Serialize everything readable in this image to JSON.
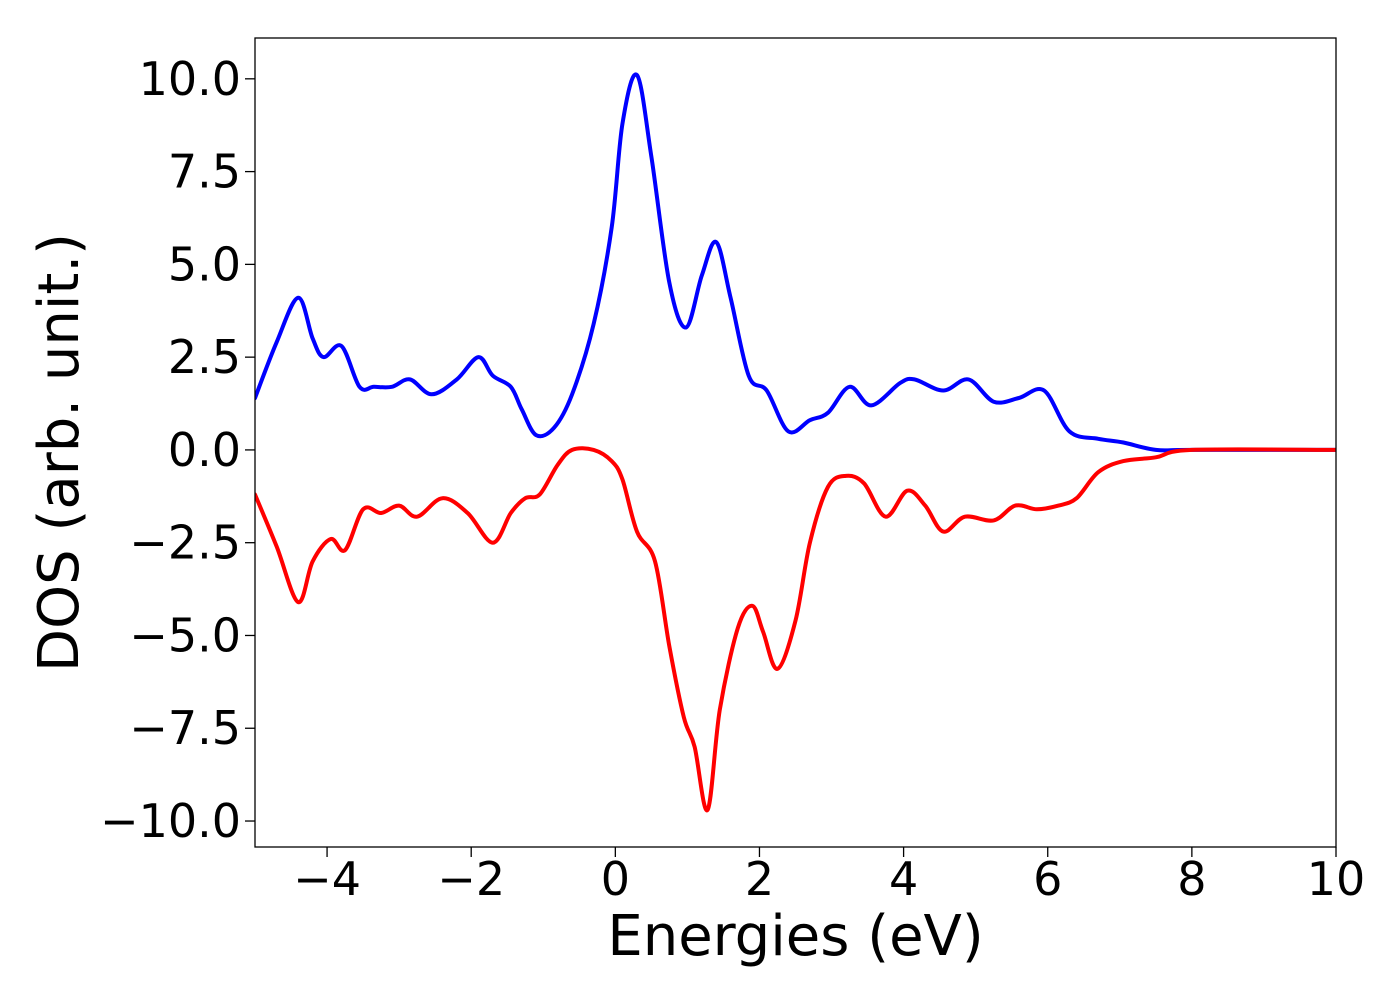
{
  "chart_data": {
    "type": "line",
    "title": "",
    "xlabel": "Energies (eV)",
    "ylabel": "DOS (arb. unit.)",
    "xlim": [
      -5,
      10
    ],
    "ylim": [
      -10.7,
      11.1
    ],
    "x_ticks": [
      -4,
      -2,
      0,
      2,
      4,
      6,
      8,
      10
    ],
    "x_tick_labels": [
      "−4",
      "−2",
      "0",
      "2",
      "4",
      "6",
      "8",
      "10"
    ],
    "y_ticks": [
      10.0,
      7.5,
      5.0,
      2.5,
      0.0,
      -2.5,
      -5.0,
      -7.5,
      -10.0
    ],
    "y_tick_labels": [
      "10.0",
      "7.5",
      "5.0",
      "2.5",
      "0.0",
      "−2.5",
      "−5.0",
      "−7.5",
      "−10.0"
    ],
    "grid": false,
    "legend": "none",
    "series": [
      {
        "color": "#0000ff",
        "x": [
          -5.0,
          -4.7,
          -4.4,
          -4.2,
          -4.05,
          -3.8,
          -3.55,
          -3.35,
          -3.1,
          -2.85,
          -2.55,
          -2.2,
          -1.9,
          -1.7,
          -1.45,
          -1.3,
          -1.1,
          -0.85,
          -0.6,
          -0.3,
          -0.05,
          0.1,
          0.3,
          0.5,
          0.75,
          0.98,
          1.2,
          1.4,
          1.6,
          1.85,
          2.1,
          2.4,
          2.7,
          2.95,
          3.25,
          3.55,
          3.95,
          4.15,
          4.55,
          4.9,
          5.25,
          5.6,
          5.95,
          6.3,
          6.7,
          7.05,
          7.5,
          8.0,
          10.0
        ],
        "y": [
          1.4,
          2.9,
          4.1,
          3.0,
          2.5,
          2.8,
          1.7,
          1.7,
          1.7,
          1.9,
          1.5,
          1.9,
          2.5,
          2.0,
          1.7,
          1.1,
          0.4,
          0.6,
          1.5,
          3.4,
          6.0,
          8.8,
          10.1,
          7.9,
          4.5,
          3.3,
          4.7,
          5.6,
          4.1,
          2.0,
          1.6,
          0.5,
          0.8,
          1.0,
          1.7,
          1.2,
          1.8,
          1.9,
          1.6,
          1.9,
          1.3,
          1.4,
          1.6,
          0.5,
          0.3,
          0.2,
          0.0,
          0.0,
          0.0
        ]
      },
      {
        "color": "#ff0000",
        "x": [
          -5.0,
          -4.7,
          -4.4,
          -4.2,
          -3.95,
          -3.75,
          -3.5,
          -3.25,
          -3.0,
          -2.75,
          -2.4,
          -2.05,
          -1.7,
          -1.45,
          -1.25,
          -1.05,
          -0.8,
          -0.6,
          -0.3,
          -0.05,
          0.1,
          0.3,
          0.55,
          0.75,
          0.95,
          1.1,
          1.28,
          1.45,
          1.7,
          1.9,
          2.05,
          2.25,
          2.5,
          2.7,
          2.95,
          3.2,
          3.45,
          3.75,
          4.05,
          4.3,
          4.55,
          4.85,
          5.25,
          5.55,
          5.85,
          6.15,
          6.4,
          6.7,
          7.05,
          7.5,
          8.0,
          10.0
        ],
        "y": [
          -1.2,
          -2.6,
          -4.1,
          -3.0,
          -2.4,
          -2.7,
          -1.6,
          -1.7,
          -1.5,
          -1.8,
          -1.3,
          -1.7,
          -2.5,
          -1.7,
          -1.3,
          -1.2,
          -0.4,
          0.0,
          0.0,
          -0.3,
          -0.8,
          -2.2,
          -3.0,
          -5.3,
          -7.2,
          -8.0,
          -9.7,
          -7.0,
          -4.8,
          -4.2,
          -4.9,
          -5.9,
          -4.6,
          -2.5,
          -1.0,
          -0.7,
          -0.9,
          -1.8,
          -1.1,
          -1.5,
          -2.2,
          -1.8,
          -1.9,
          -1.5,
          -1.6,
          -1.5,
          -1.3,
          -0.6,
          -0.3,
          -0.2,
          0.0,
          0.0
        ]
      }
    ]
  }
}
